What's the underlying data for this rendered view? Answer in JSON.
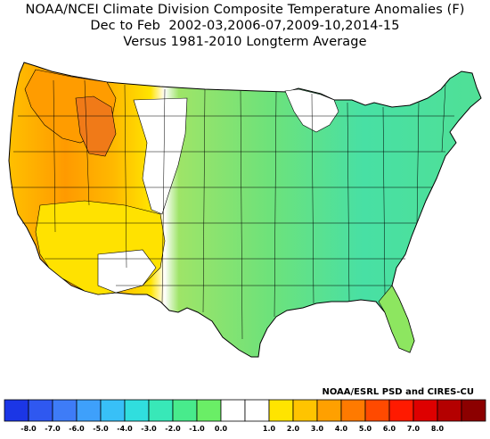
{
  "title": {
    "line1": "NOAA/NCEI Climate Division Composite Temperature Anomalies (F)",
    "line2": "Dec to Feb  2002-03,2006-07,2009-10,2014-15",
    "line3": "Versus 1981-2010 Longterm Average"
  },
  "credit": "NOAA/ESRL PSD and CIRES-CU",
  "legend": {
    "tick_labels": [
      "-8.0",
      "-7.0",
      "-6.0",
      "-5.0",
      "-4.0",
      "-3.0",
      "-2.0",
      "-1.0",
      "0.0",
      "1.0",
      "2.0",
      "3.0",
      "4.0",
      "5.0",
      "6.0",
      "7.0",
      "8.0"
    ],
    "colors": [
      "#1b36e6",
      "#2f58f0",
      "#3e7cf7",
      "#3ea0fb",
      "#38c0f7",
      "#30dede",
      "#38e8b8",
      "#48eb8c",
      "#6aee66",
      "#ffffff",
      "#ffffff",
      "#ffe400",
      "#ffc400",
      "#ffa000",
      "#ff7a00",
      "#ff4a00",
      "#ff1a00",
      "#de0000",
      "#b40000",
      "#8c0000"
    ]
  },
  "map": {
    "region": "Contiguous United States",
    "colors": {
      "pacific_nw": "#ff9c00",
      "northern_rockies": "#f07a18",
      "west_coast": "#ffc600",
      "southwest": "#ffe200",
      "plains_transition": "#ffffff",
      "central": "#72e26a",
      "east": "#4ee09c",
      "southeast": "#8de660",
      "great_lakes": "#ffffff"
    }
  }
}
